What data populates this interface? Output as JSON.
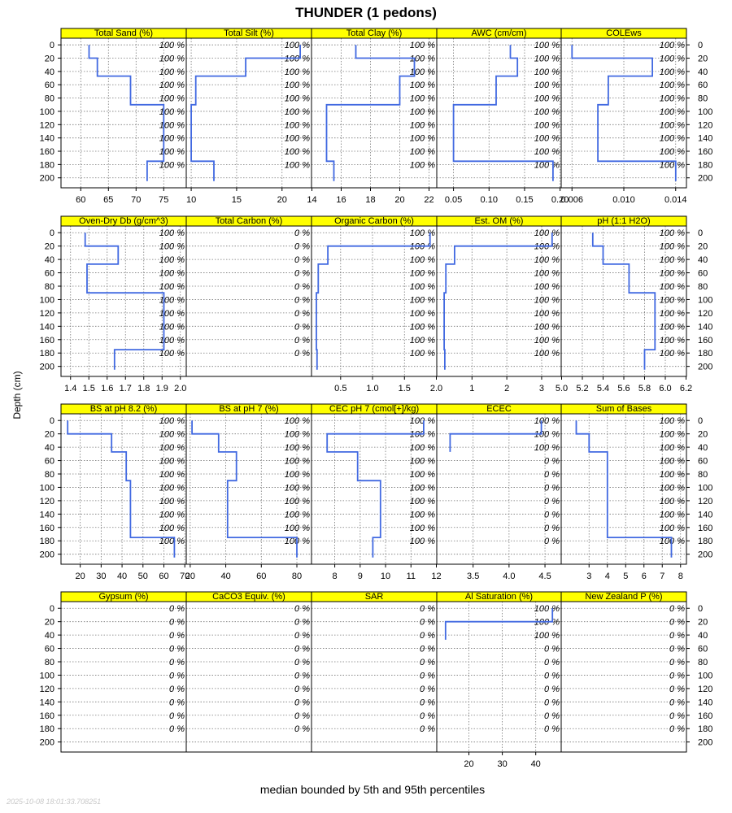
{
  "chart_data": {
    "type": "line",
    "title": "THUNDER (1 pedons)",
    "ylabel": "Depth (cm)",
    "xlabel": "median bounded by 5th and 95th percentiles",
    "timestamp": "2025-10-08 18:01:33.708251",
    "depth_ticks": [
      0,
      20,
      40,
      60,
      80,
      100,
      120,
      140,
      160,
      180,
      200
    ],
    "depth_range": [
      -10,
      215
    ],
    "pct_depths": [
      0,
      20,
      40,
      60,
      80,
      100,
      120,
      140,
      160,
      180
    ],
    "grid_color": "#777777",
    "line_color": "#4169e1",
    "strip_color": "#ffff00",
    "panels": [
      {
        "name": "Total Sand (%)",
        "xlim": [
          56.5,
          79
        ],
        "xticks": [
          60,
          65,
          70,
          75
        ],
        "pct": [
          "100 %",
          "100 %",
          "100 %",
          "100 %",
          "100 %",
          "100 %",
          "100 %",
          "100 %",
          "100 %",
          "100 %"
        ],
        "profile": [
          [
            61.5,
            0
          ],
          [
            61.5,
            20
          ],
          [
            63,
            20
          ],
          [
            63,
            47
          ],
          [
            69,
            47
          ],
          [
            69,
            90
          ],
          [
            75,
            90
          ],
          [
            75,
            175
          ],
          [
            72,
            175
          ],
          [
            72,
            205
          ]
        ]
      },
      {
        "name": "Total Silt (%)",
        "xlim": [
          9.5,
          23.2
        ],
        "xticks": [
          10,
          15,
          20
        ],
        "pct": [
          "100 %",
          "100 %",
          "100 %",
          "100 %",
          "100 %",
          "100 %",
          "100 %",
          "100 %",
          "100 %",
          "100 %"
        ],
        "profile": [
          [
            22,
            0
          ],
          [
            22,
            20
          ],
          [
            16,
            20
          ],
          [
            16,
            47
          ],
          [
            10.5,
            47
          ],
          [
            10.5,
            90
          ],
          [
            10,
            90
          ],
          [
            10,
            175
          ],
          [
            12.5,
            175
          ],
          [
            12.5,
            205
          ]
        ]
      },
      {
        "name": "Total Clay (%)",
        "xlim": [
          14,
          22.5
        ],
        "xticks": [
          14,
          16,
          18,
          20,
          22
        ],
        "pct": [
          "100 %",
          "100 %",
          "100 %",
          "100 %",
          "100 %",
          "100 %",
          "100 %",
          "100 %",
          "100 %",
          "100 %"
        ],
        "profile": [
          [
            17,
            0
          ],
          [
            17,
            20
          ],
          [
            21,
            20
          ],
          [
            21,
            47
          ],
          [
            20,
            47
          ],
          [
            20,
            90
          ],
          [
            15,
            90
          ],
          [
            15,
            175
          ],
          [
            15.5,
            175
          ],
          [
            15.5,
            205
          ]
        ]
      },
      {
        "name": "AWC (cm/cm)",
        "xlim": [
          0.027,
          0.201
        ],
        "xticks": [
          0.05,
          0.1,
          0.15,
          0.2
        ],
        "tick_decimals": 2,
        "pct": [
          "100 %",
          "100 %",
          "100 %",
          "100 %",
          "100 %",
          "100 %",
          "100 %",
          "100 %",
          "100 %",
          "100 %"
        ],
        "profile": [
          [
            0.13,
            0
          ],
          [
            0.13,
            20
          ],
          [
            0.14,
            20
          ],
          [
            0.14,
            47
          ],
          [
            0.11,
            47
          ],
          [
            0.11,
            90
          ],
          [
            0.05,
            90
          ],
          [
            0.05,
            175
          ],
          [
            0.19,
            175
          ],
          [
            0.19,
            205
          ]
        ]
      },
      {
        "name": "COLEws",
        "xlim": [
          0.0052,
          0.0148
        ],
        "xticks": [
          0.006,
          0.01,
          0.014
        ],
        "tick_decimals": 3,
        "pct": [
          "100 %",
          "100 %",
          "100 %",
          "100 %",
          "100 %",
          "100 %",
          "100 %",
          "100 %",
          "100 %",
          "100 %"
        ],
        "profile": [
          [
            0.006,
            0
          ],
          [
            0.006,
            20
          ],
          [
            0.0122,
            20
          ],
          [
            0.0122,
            47
          ],
          [
            0.0088,
            47
          ],
          [
            0.0088,
            90
          ],
          [
            0.008,
            90
          ],
          [
            0.008,
            175
          ],
          [
            0.014,
            175
          ],
          [
            0.014,
            205
          ]
        ]
      },
      {
        "name": "Oven-Dry Db (g/cm^3)",
        "xlim": [
          1.35,
          2.03
        ],
        "xticks": [
          1.4,
          1.5,
          1.6,
          1.7,
          1.8,
          1.9,
          2.0
        ],
        "tick_decimals": 1,
        "pct": [
          "100 %",
          "100 %",
          "100 %",
          "100 %",
          "100 %",
          "100 %",
          "100 %",
          "100 %",
          "100 %",
          "100 %"
        ],
        "profile": [
          [
            1.48,
            0
          ],
          [
            1.48,
            20
          ],
          [
            1.66,
            20
          ],
          [
            1.66,
            47
          ],
          [
            1.49,
            47
          ],
          [
            1.49,
            90
          ],
          [
            1.91,
            90
          ],
          [
            1.91,
            175
          ],
          [
            1.64,
            175
          ],
          [
            1.64,
            205
          ]
        ]
      },
      {
        "name": "Total Carbon (%)",
        "xlim": [
          0,
          1
        ],
        "xticks": [],
        "pct": [
          "0 %",
          "0 %",
          "0 %",
          "0 %",
          "0 %",
          "0 %",
          "0 %",
          "0 %",
          "0 %",
          "0 %"
        ],
        "profile": []
      },
      {
        "name": "Organic Carbon (%)",
        "xlim": [
          0.05,
          2.0
        ],
        "xticks": [
          0.5,
          1.0,
          1.5,
          2.0
        ],
        "tick_decimals": 1,
        "pct": [
          "100 %",
          "100 %",
          "100 %",
          "100 %",
          "100 %",
          "100 %",
          "100 %",
          "100 %",
          "100 %",
          "100 %"
        ],
        "profile": [
          [
            1.9,
            0
          ],
          [
            1.9,
            20
          ],
          [
            0.3,
            20
          ],
          [
            0.3,
            47
          ],
          [
            0.15,
            47
          ],
          [
            0.15,
            90
          ],
          [
            0.12,
            90
          ],
          [
            0.12,
            175
          ],
          [
            0.13,
            175
          ],
          [
            0.13,
            205
          ]
        ]
      },
      {
        "name": "Est. OM (%)",
        "xlim": [
          0,
          3.55
        ],
        "xticks": [
          1,
          2,
          3
        ],
        "pct": [
          "100 %",
          "100 %",
          "100 %",
          "100 %",
          "100 %",
          "100 %",
          "100 %",
          "100 %",
          "100 %",
          "100 %"
        ],
        "profile": [
          [
            3.3,
            0
          ],
          [
            3.3,
            20
          ],
          [
            0.5,
            20
          ],
          [
            0.5,
            47
          ],
          [
            0.25,
            47
          ],
          [
            0.25,
            90
          ],
          [
            0.2,
            90
          ],
          [
            0.2,
            175
          ],
          [
            0.22,
            175
          ],
          [
            0.22,
            205
          ]
        ]
      },
      {
        "name": "pH (1:1 H2O)",
        "xlim": [
          5.0,
          6.2
        ],
        "xticks": [
          5.0,
          5.2,
          5.4,
          5.6,
          5.8,
          6.0,
          6.2
        ],
        "tick_decimals": 1,
        "pct": [
          "100 %",
          "100 %",
          "100 %",
          "100 %",
          "100 %",
          "100 %",
          "100 %",
          "100 %",
          "100 %",
          "100 %"
        ],
        "profile": [
          [
            5.3,
            0
          ],
          [
            5.3,
            20
          ],
          [
            5.4,
            20
          ],
          [
            5.4,
            47
          ],
          [
            5.65,
            47
          ],
          [
            5.65,
            90
          ],
          [
            5.9,
            90
          ],
          [
            5.9,
            175
          ],
          [
            5.8,
            175
          ],
          [
            5.8,
            205
          ]
        ]
      },
      {
        "name": "BS at pH 8.2 (%)",
        "xlim": [
          11,
          70.5
        ],
        "xticks": [
          20,
          30,
          40,
          50,
          60,
          70
        ],
        "pct": [
          "100 %",
          "100 %",
          "100 %",
          "100 %",
          "100 %",
          "100 %",
          "100 %",
          "100 %",
          "100 %",
          "100 %"
        ],
        "profile": [
          [
            14,
            0
          ],
          [
            14,
            20
          ],
          [
            35,
            20
          ],
          [
            35,
            47
          ],
          [
            42,
            47
          ],
          [
            42,
            90
          ],
          [
            44,
            90
          ],
          [
            44,
            175
          ],
          [
            65,
            175
          ],
          [
            65,
            205
          ]
        ]
      },
      {
        "name": "BS at pH 7 (%)",
        "xlim": [
          18,
          88
        ],
        "xticks": [
          20,
          40,
          60,
          80
        ],
        "pct": [
          "100 %",
          "100 %",
          "100 %",
          "100 %",
          "100 %",
          "100 %",
          "100 %",
          "100 %",
          "100 %",
          "100 %"
        ],
        "profile": [
          [
            21,
            0
          ],
          [
            21,
            20
          ],
          [
            36,
            20
          ],
          [
            36,
            47
          ],
          [
            46,
            47
          ],
          [
            46,
            90
          ],
          [
            41,
            90
          ],
          [
            41,
            175
          ],
          [
            80,
            175
          ],
          [
            80,
            205
          ]
        ]
      },
      {
        "name": "CEC pH 7 (cmol[+]/kg)",
        "xlim": [
          7.1,
          12
        ],
        "xticks": [
          8,
          9,
          10,
          11,
          12
        ],
        "pct": [
          "100 %",
          "100 %",
          "100 %",
          "100 %",
          "100 %",
          "100 %",
          "100 %",
          "100 %",
          "100 %",
          "100 %"
        ],
        "profile": [
          [
            11.5,
            0
          ],
          [
            11.5,
            20
          ],
          [
            7.7,
            20
          ],
          [
            7.7,
            47
          ],
          [
            8.9,
            47
          ],
          [
            8.9,
            90
          ],
          [
            9.8,
            90
          ],
          [
            9.8,
            175
          ],
          [
            9.5,
            175
          ],
          [
            9.5,
            205
          ]
        ]
      },
      {
        "name": "ECEC",
        "xlim": [
          3.0,
          4.72
        ],
        "xticks": [
          3.5,
          4.0,
          4.5
        ],
        "tick_decimals": 1,
        "pct": [
          "100 %",
          "100 %",
          "100 %",
          "0 %",
          "0 %",
          "0 %",
          "0 %",
          "0 %",
          "0 %",
          "0 %"
        ],
        "profile": [
          [
            4.45,
            0
          ],
          [
            4.45,
            20
          ],
          [
            3.18,
            20
          ],
          [
            3.18,
            47
          ]
        ]
      },
      {
        "name": "Sum of Bases",
        "xlim": [
          1.5,
          8.3
        ],
        "xticks": [
          3,
          4,
          5,
          6,
          7,
          8
        ],
        "pct": [
          "100 %",
          "100 %",
          "100 %",
          "100 %",
          "100 %",
          "100 %",
          "100 %",
          "100 %",
          "100 %",
          "100 %"
        ],
        "profile": [
          [
            2.3,
            0
          ],
          [
            2.3,
            20
          ],
          [
            3.0,
            20
          ],
          [
            3.0,
            47
          ],
          [
            4.0,
            47
          ],
          [
            4.0,
            90
          ],
          [
            4.0,
            175
          ],
          [
            7.5,
            175
          ],
          [
            7.5,
            205
          ]
        ]
      },
      {
        "name": "Gypsum (%)",
        "xlim": [
          0,
          1
        ],
        "xticks": [],
        "pct": [
          "0 %",
          "0 %",
          "0 %",
          "0 %",
          "0 %",
          "0 %",
          "0 %",
          "0 %",
          "0 %",
          "0 %"
        ],
        "profile": []
      },
      {
        "name": "CaCO3 Equiv. (%)",
        "xlim": [
          0,
          1
        ],
        "xticks": [],
        "pct": [
          "0 %",
          "0 %",
          "0 %",
          "0 %",
          "0 %",
          "0 %",
          "0 %",
          "0 %",
          "0 %",
          "0 %"
        ],
        "profile": []
      },
      {
        "name": "SAR",
        "xlim": [
          0,
          1
        ],
        "xticks": [],
        "pct": [
          "0 %",
          "0 %",
          "0 %",
          "0 %",
          "0 %",
          "0 %",
          "0 %",
          "0 %",
          "0 %",
          "0 %"
        ],
        "profile": []
      },
      {
        "name": "Al Saturation (%)",
        "xlim": [
          10.5,
          47.5
        ],
        "xticks": [
          20,
          30,
          40
        ],
        "pct": [
          "100 %",
          "100 %",
          "100 %",
          "0 %",
          "0 %",
          "0 %",
          "0 %",
          "0 %",
          "0 %",
          "0 %"
        ],
        "profile": [
          [
            45,
            0
          ],
          [
            45,
            20
          ],
          [
            13,
            20
          ],
          [
            13,
            47
          ]
        ]
      },
      {
        "name": "New Zealand P (%)",
        "xlim": [
          0,
          1
        ],
        "xticks": [],
        "pct": [
          "0 %",
          "0 %",
          "0 %",
          "0 %",
          "0 %",
          "0 %",
          "0 %",
          "0 %",
          "0 %",
          "0 %"
        ],
        "profile": []
      }
    ]
  }
}
